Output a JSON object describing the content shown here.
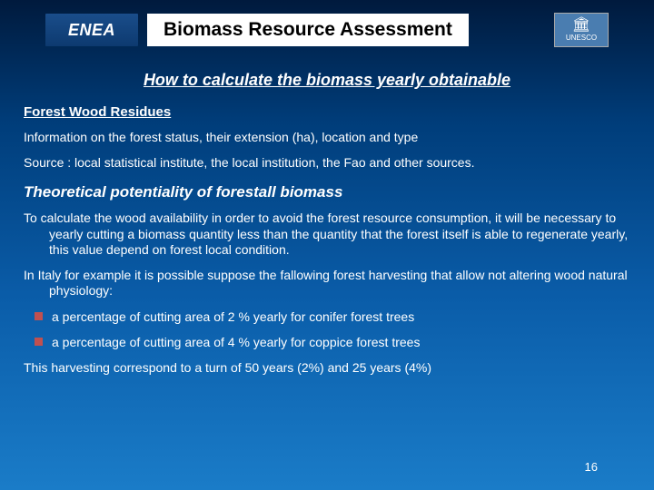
{
  "header": {
    "logo_left_text": "ENEA",
    "title": "Biomass Resource Assessment",
    "logo_right_text": "UNESCO"
  },
  "subtitle": "How to calculate the biomass yearly obtainable",
  "section1": {
    "heading": "Forest Wood Residues",
    "line1": "Information on the forest status, their  extension (ha), location and type",
    "line2": "Source : local statistical institute, the local institution, the Fao and other sources."
  },
  "section2": {
    "heading": "Theoretical potentiality of forestall biomass",
    "para1": "To calculate the wood availability in order to avoid the forest resource consumption, it will be necessary to yearly cutting a biomass quantity less than the quantity that the forest itself is able to regenerate yearly, this value depend on forest local condition.",
    "para2": "In Italy for example it is possible suppose the fallowing forest harvesting that  allow not altering wood natural physiology:",
    "bullet1": "a percentage of cutting area of 2 % yearly for conifer forest trees",
    "bullet2": "a percentage of cutting area of 4 % yearly for coppice forest trees",
    "closing": "This harvesting correspond to a turn of 50 years (2%) and 25 years (4%)"
  },
  "page_number": "16",
  "colors": {
    "bullet": "#c05050"
  }
}
